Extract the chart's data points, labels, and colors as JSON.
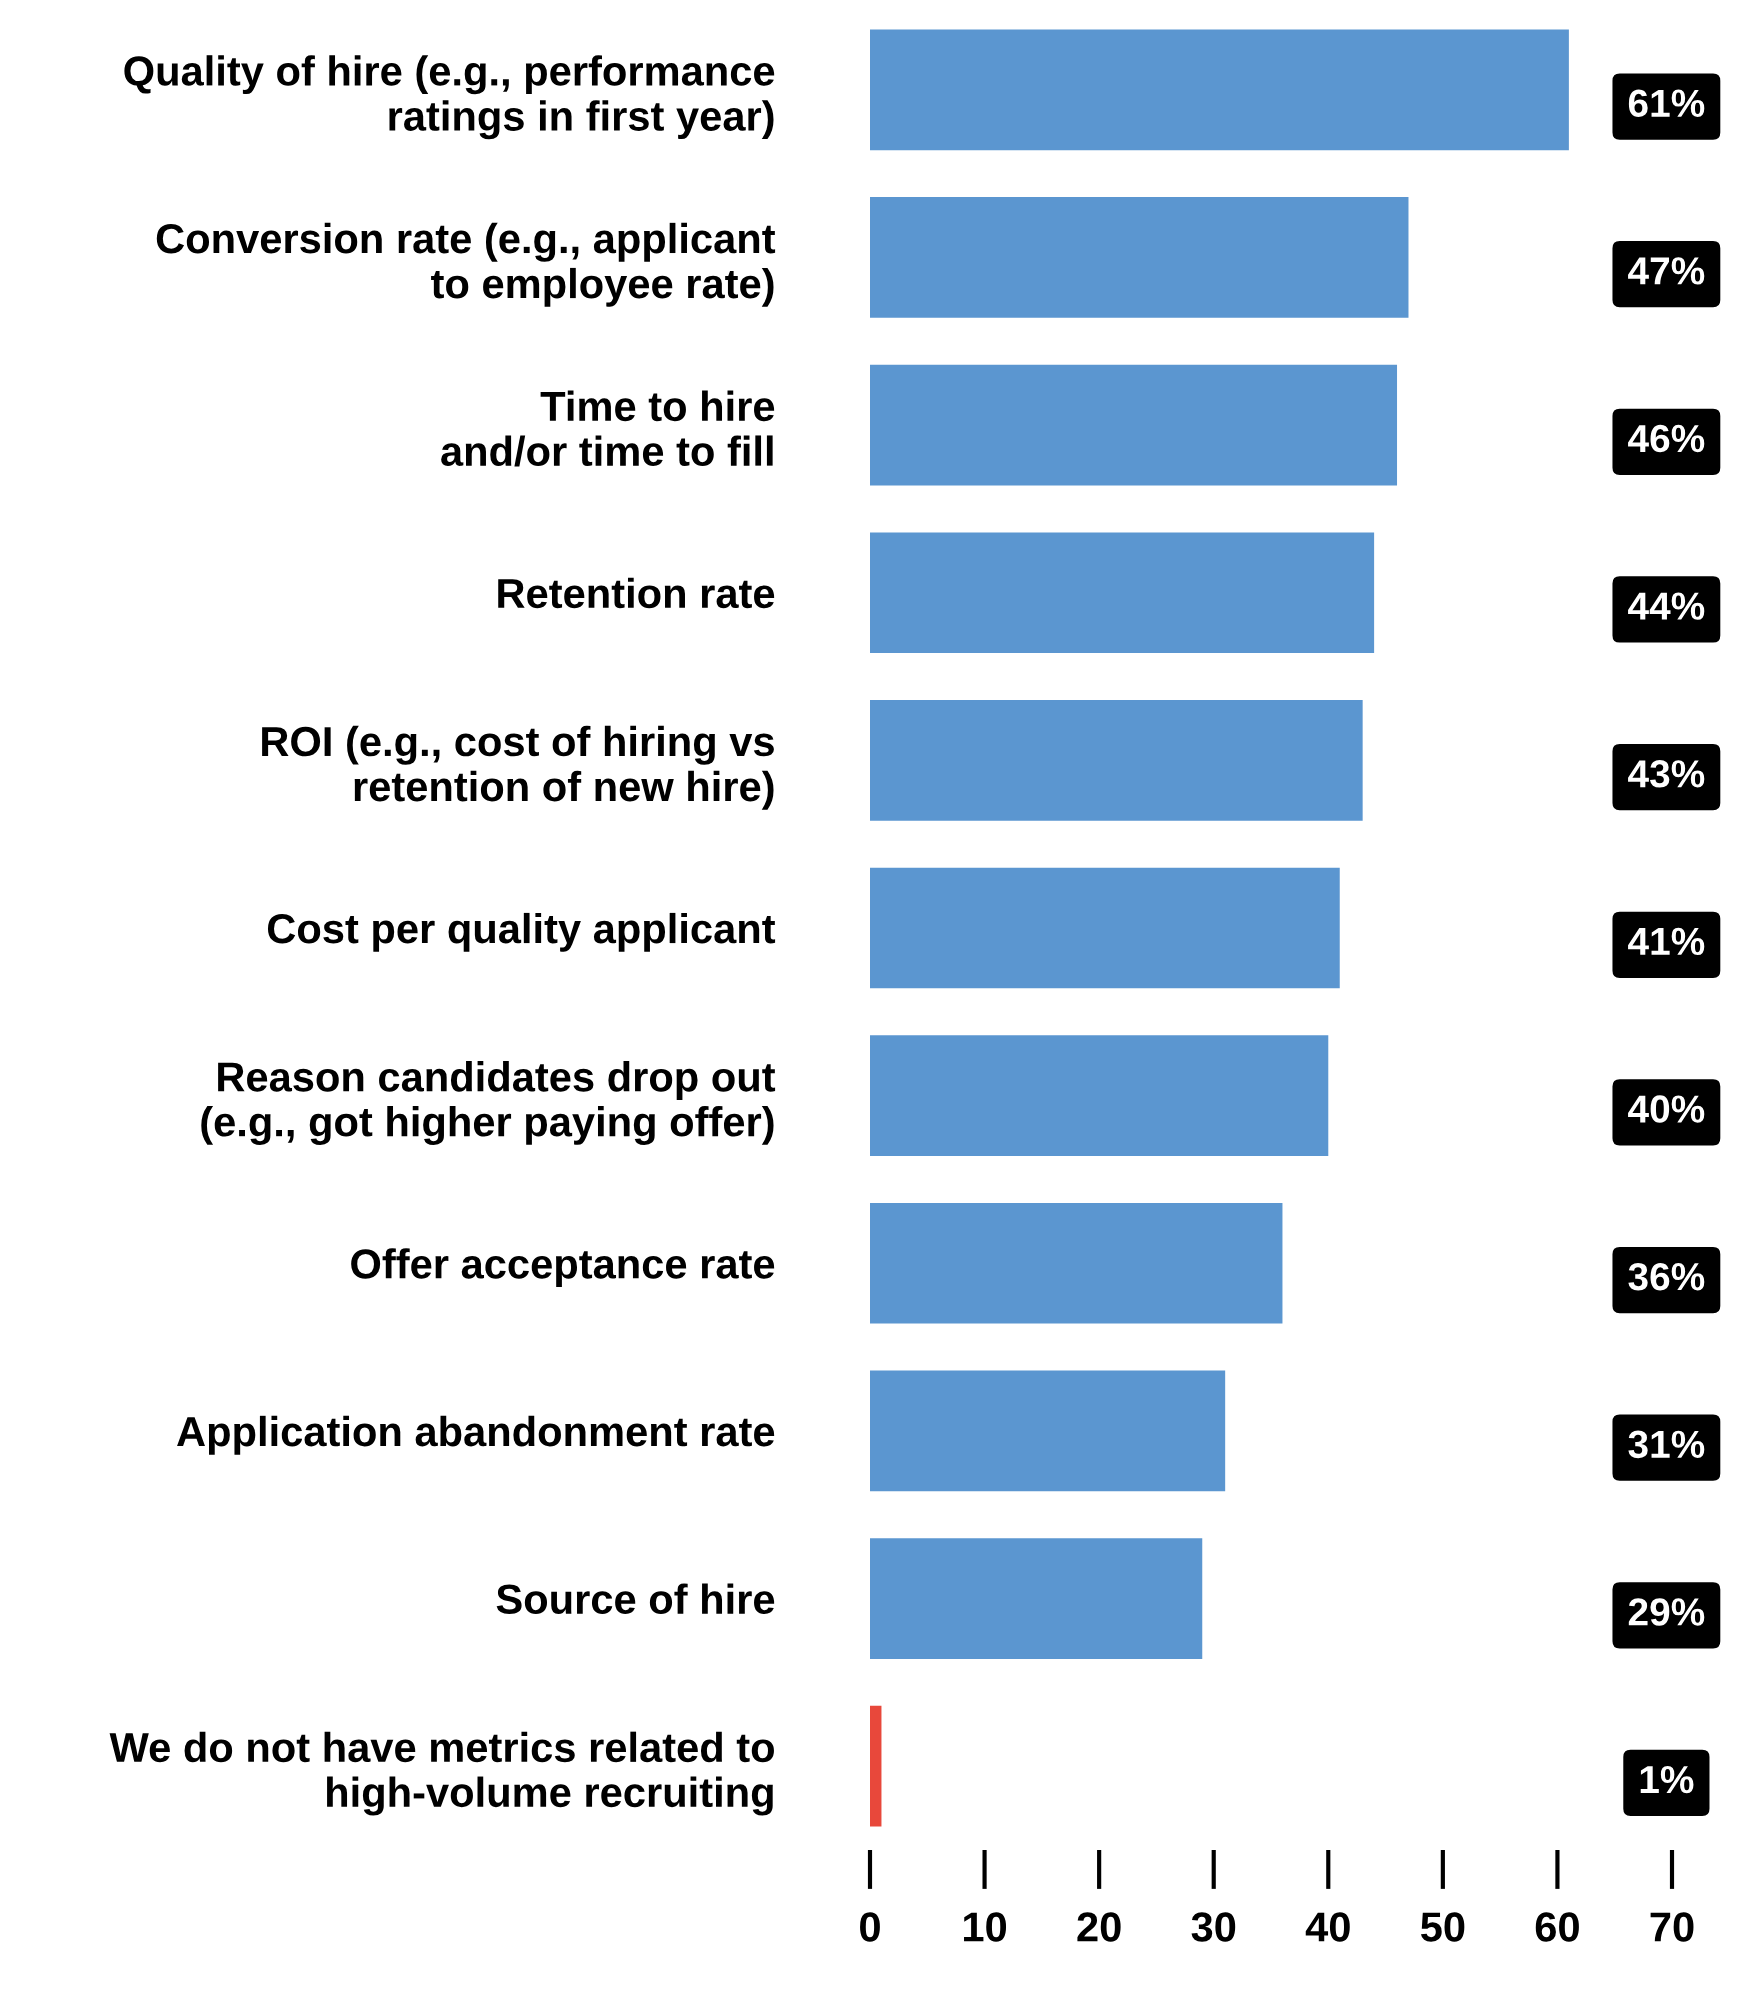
{
  "chart_data": {
    "type": "bar",
    "orientation": "horizontal",
    "categories": [
      "Quality of hire (e.g., performance\nratings in first year)",
      "Conversion rate (e.g., applicant\nto employee rate)",
      "Time to hire\nand/or time to fill",
      "Retention rate",
      "ROI (e.g., cost of hiring vs\nretention of new hire)",
      "Cost per quality applicant",
      "Reason candidates drop out\n(e.g., got higher paying offer)",
      "Offer acceptance rate",
      "Application abandonment rate",
      "Source of hire",
      "We do not have metrics related to\nhigh-volume recruiting"
    ],
    "values": [
      61,
      47,
      46,
      44,
      43,
      41,
      40,
      36,
      31,
      29,
      1
    ],
    "colors": [
      "#5b96d0",
      "#5b96d0",
      "#5b96d0",
      "#5b96d0",
      "#5b96d0",
      "#5b96d0",
      "#5b96d0",
      "#5b96d0",
      "#5b96d0",
      "#5b96d0",
      "#e8483b"
    ],
    "value_labels": [
      "61%",
      "47%",
      "46%",
      "44%",
      "43%",
      "41%",
      "40%",
      "36%",
      "31%",
      "29%",
      "1%"
    ],
    "xlim": [
      0,
      70
    ],
    "xticks": [
      0,
      10,
      20,
      30,
      40,
      50,
      60,
      70
    ],
    "grid": false,
    "legend": false
  }
}
